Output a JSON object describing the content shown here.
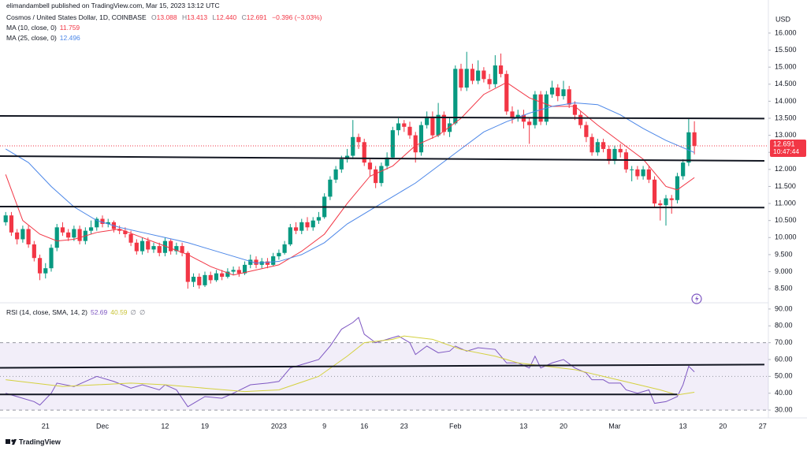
{
  "header": {
    "publisher": "elimandambell published on TradingView.com, Mar 15, 2023 13:12 UTC"
  },
  "footer": {
    "brand": "TradingView"
  },
  "chart_data": [
    {
      "type": "candlestick",
      "title": "Cosmos / United States Dollar, 1D, COINBASE",
      "readout": [
        {
          "label": "O",
          "value": "13.088"
        },
        {
          "label": "H",
          "value": "13.413"
        },
        {
          "label": "L",
          "value": "12.440"
        },
        {
          "label": "C",
          "value": "12.691"
        }
      ],
      "change": "−0.396 (−3.03%)",
      "currency": "USD",
      "countdown": "10:47:44",
      "up_color": "#089981",
      "down_color": "#f23645",
      "xlim": [
        -1,
        134
      ],
      "xticks": [
        {
          "value": 7,
          "label": "21"
        },
        {
          "value": 17,
          "label": "Dec"
        },
        {
          "value": 28,
          "label": "12"
        },
        {
          "value": 35,
          "label": "19"
        },
        {
          "value": 48,
          "label": "2023"
        },
        {
          "value": 56,
          "label": "9"
        },
        {
          "value": 63,
          "label": "16"
        },
        {
          "value": 70,
          "label": "23"
        },
        {
          "value": 79,
          "label": "Feb"
        },
        {
          "value": 91,
          "label": "13"
        },
        {
          "value": 98,
          "label": "20"
        },
        {
          "value": 107,
          "label": "Mar"
        },
        {
          "value": 119,
          "label": "13"
        },
        {
          "value": 126,
          "label": "20"
        },
        {
          "value": 133,
          "label": "27"
        }
      ],
      "ylim": [
        8.11,
        16.97
      ],
      "yticks": [
        {
          "value": 8.5,
          "label": "8.500"
        },
        {
          "value": 9,
          "label": "9.000"
        },
        {
          "value": 9.5,
          "label": "9.500"
        },
        {
          "value": 10,
          "label": "10.000"
        },
        {
          "value": 10.5,
          "label": "10.500"
        },
        {
          "value": 11,
          "label": "11.000"
        },
        {
          "value": 11.5,
          "label": "11.500"
        },
        {
          "value": 12,
          "label": "12.000"
        },
        {
          "value": 12.5,
          "label": "12.500"
        },
        {
          "value": 13,
          "label": "13.000"
        },
        {
          "value": 13.5,
          "label": "13.500"
        },
        {
          "value": 14,
          "label": "14.000"
        },
        {
          "value": 14.5,
          "label": "14.500"
        },
        {
          "value": 15,
          "label": "15.000"
        },
        {
          "value": 15.5,
          "label": "15.500"
        },
        {
          "value": 16,
          "label": "16.000"
        }
      ],
      "grid": false,
      "open": [
        10.45,
        10.65,
        10.15,
        9.95,
        10.25,
        9.8,
        9.4,
        8.95,
        9.1,
        9.7,
        10.3,
        10.15,
        10.0,
        10.25,
        9.9,
        10.2,
        10.3,
        10.55,
        10.4,
        10.45,
        10.25,
        10.2,
        10.1,
        9.85,
        9.6,
        9.9,
        9.65,
        9.75,
        9.55,
        9.9,
        9.6,
        9.75,
        9.55,
        8.7,
        8.85,
        8.6,
        8.9,
        8.75,
        8.95,
        8.85,
        9.0,
        9.05,
        8.95,
        9.2,
        9.35,
        9.2,
        9.3,
        9.2,
        9.45,
        9.55,
        9.8,
        10.3,
        10.2,
        10.45,
        10.3,
        10.5,
        10.6,
        11.2,
        11.7,
        12.0,
        12.3,
        12.4,
        12.95,
        12.8,
        12.2,
        12.0,
        11.6,
        12.1,
        12.35,
        13.15,
        13.35,
        13.25,
        13.0,
        12.5,
        13.3,
        13.55,
        13.0,
        13.6,
        13.1,
        13.35,
        14.95,
        14.4,
        14.95,
        14.6,
        14.9,
        14.65,
        14.5,
        15.05,
        14.8,
        13.7,
        13.5,
        13.6,
        13.4,
        13.3,
        14.2,
        13.4,
        14.2,
        14.4,
        14.15,
        14.35,
        13.9,
        13.6,
        13.3,
        12.95,
        12.5,
        12.8,
        12.6,
        12.25,
        12.6,
        12.5,
        12.0,
        12.0,
        11.8,
        12.0,
        11.7,
        11.0,
        10.95,
        11.15,
        11.1,
        11.8,
        12.2,
        13.088
      ],
      "high": [
        10.75,
        10.75,
        10.25,
        10.35,
        10.35,
        9.9,
        9.5,
        9.25,
        9.8,
        10.4,
        10.45,
        10.25,
        10.35,
        10.35,
        10.3,
        10.5,
        10.6,
        10.65,
        10.55,
        10.5,
        10.35,
        10.3,
        10.2,
        9.95,
        10.0,
        10.0,
        9.85,
        9.85,
        10.0,
        9.95,
        9.85,
        9.85,
        9.6,
        8.95,
        8.95,
        9.0,
        9.0,
        9.05,
        9.05,
        9.1,
        9.15,
        9.15,
        9.3,
        9.5,
        9.45,
        9.4,
        9.4,
        9.55,
        9.65,
        9.9,
        10.4,
        10.45,
        10.55,
        10.6,
        10.6,
        10.75,
        11.3,
        11.8,
        12.1,
        12.4,
        12.6,
        13.45,
        13.05,
        12.9,
        12.3,
        12.1,
        12.2,
        12.5,
        13.25,
        13.5,
        13.45,
        13.4,
        13.1,
        13.4,
        13.7,
        13.7,
        13.95,
        13.7,
        13.5,
        15.05,
        15.1,
        15.45,
        15.1,
        15.2,
        15.0,
        14.8,
        15.35,
        15.4,
        14.9,
        13.85,
        13.75,
        13.75,
        13.5,
        14.3,
        14.3,
        14.3,
        14.6,
        14.5,
        14.6,
        14.45,
        14.0,
        13.7,
        13.4,
        13.05,
        12.9,
        12.9,
        12.7,
        12.7,
        12.75,
        12.6,
        12.1,
        12.1,
        12.1,
        12.1,
        11.8,
        11.1,
        11.25,
        11.25,
        11.9,
        12.3,
        13.5,
        13.413
      ],
      "low": [
        10.35,
        10.05,
        9.8,
        9.85,
        9.7,
        9.3,
        8.75,
        8.8,
        9.0,
        9.6,
        10.05,
        9.9,
        9.9,
        9.8,
        9.8,
        10.1,
        10.2,
        10.3,
        10.3,
        10.15,
        10.1,
        10.0,
        9.75,
        9.5,
        9.5,
        9.55,
        9.55,
        9.45,
        9.45,
        9.5,
        9.5,
        9.45,
        8.5,
        8.55,
        8.5,
        8.55,
        8.65,
        8.7,
        8.75,
        8.8,
        8.9,
        8.85,
        8.9,
        9.1,
        9.1,
        9.1,
        9.1,
        9.15,
        9.35,
        9.5,
        9.75,
        10.1,
        10.1,
        10.2,
        10.2,
        10.4,
        10.55,
        11.1,
        11.6,
        11.9,
        12.2,
        12.3,
        12.6,
        12.1,
        11.8,
        11.45,
        11.5,
        12.0,
        12.3,
        13.0,
        13.1,
        12.9,
        12.2,
        12.4,
        13.2,
        12.9,
        12.95,
        13.0,
        12.95,
        13.3,
        14.3,
        14.3,
        14.5,
        14.5,
        14.55,
        14.35,
        14.4,
        14.7,
        13.6,
        13.35,
        13.4,
        13.2,
        12.75,
        13.2,
        13.3,
        13.3,
        14.1,
        14.0,
        14.05,
        13.8,
        13.45,
        13.2,
        12.8,
        12.4,
        12.4,
        12.5,
        12.15,
        12.15,
        12.35,
        11.9,
        11.65,
        11.7,
        11.7,
        11.6,
        10.9,
        10.5,
        10.35,
        10.7,
        11.0,
        11.7,
        12.1,
        12.44
      ],
      "close": [
        10.65,
        10.15,
        9.95,
        10.25,
        9.8,
        9.4,
        8.95,
        9.1,
        9.7,
        10.3,
        10.15,
        10.0,
        10.25,
        9.9,
        10.2,
        10.3,
        10.55,
        10.4,
        10.45,
        10.25,
        10.2,
        10.1,
        9.85,
        9.6,
        9.9,
        9.65,
        9.75,
        9.55,
        9.9,
        9.6,
        9.75,
        9.55,
        8.7,
        8.85,
        8.6,
        8.9,
        8.75,
        8.95,
        8.85,
        9.0,
        9.05,
        8.95,
        9.2,
        9.35,
        9.2,
        9.3,
        9.2,
        9.45,
        9.55,
        9.8,
        10.3,
        10.2,
        10.45,
        10.3,
        10.5,
        10.6,
        11.2,
        11.7,
        12.0,
        12.3,
        12.4,
        12.95,
        12.8,
        12.2,
        12.0,
        11.6,
        12.1,
        12.35,
        13.15,
        13.35,
        13.25,
        13.0,
        12.5,
        13.3,
        13.55,
        13.0,
        13.6,
        13.1,
        13.35,
        14.95,
        14.4,
        14.95,
        14.6,
        14.9,
        14.65,
        14.5,
        15.05,
        14.8,
        13.7,
        13.5,
        13.6,
        13.4,
        13.3,
        14.2,
        13.4,
        14.2,
        14.4,
        14.15,
        14.35,
        13.9,
        13.6,
        13.3,
        12.95,
        12.5,
        12.8,
        12.6,
        12.25,
        12.6,
        12.5,
        12.0,
        12.0,
        11.8,
        12.0,
        11.7,
        11.0,
        10.95,
        11.15,
        11.1,
        11.8,
        12.2,
        13.088,
        12.691
      ],
      "series": [
        {
          "name": "MA (10, close, 0)",
          "color": "#f23645",
          "x": [
            0,
            3,
            6,
            9,
            12,
            16,
            20,
            24,
            28,
            32,
            36,
            40,
            44,
            48,
            52,
            56,
            60,
            64,
            68,
            72,
            76,
            80,
            84,
            88,
            92,
            96,
            100,
            104,
            108,
            112,
            116,
            118,
            121
          ],
          "values": [
            11.85,
            10.5,
            10.1,
            9.9,
            9.95,
            10.15,
            10.25,
            10.0,
            9.75,
            9.5,
            9.15,
            8.9,
            9.05,
            9.2,
            9.6,
            10.1,
            11.0,
            11.8,
            12.1,
            12.7,
            13.0,
            13.5,
            14.2,
            14.55,
            14.1,
            13.85,
            13.85,
            13.3,
            12.8,
            12.3,
            11.5,
            11.4,
            11.759
          ]
        },
        {
          "name": "MA (25, close, 0)",
          "color": "#4c87e8",
          "x": [
            0,
            4,
            8,
            12,
            16,
            20,
            24,
            28,
            32,
            36,
            40,
            44,
            48,
            52,
            56,
            60,
            64,
            68,
            72,
            76,
            80,
            84,
            88,
            92,
            96,
            100,
            104,
            108,
            112,
            116,
            121
          ],
          "values": [
            12.6,
            12.2,
            11.5,
            10.9,
            10.5,
            10.3,
            10.15,
            10.0,
            9.85,
            9.65,
            9.45,
            9.25,
            9.3,
            9.5,
            9.85,
            10.4,
            10.8,
            11.2,
            11.6,
            12.1,
            12.6,
            13.1,
            13.4,
            13.65,
            13.85,
            13.95,
            13.9,
            13.6,
            13.2,
            12.85,
            12.496
          ]
        }
      ],
      "trendlines": [
        {
          "x": [
            -1,
            133.3
          ],
          "y": [
            13.57,
            13.49
          ]
        },
        {
          "x": [
            -1,
            133.3
          ],
          "y": [
            12.39,
            12.25
          ]
        },
        {
          "x": [
            -1,
            133.3
          ],
          "y": [
            10.91,
            10.88
          ]
        }
      ]
    },
    {
      "type": "line",
      "ylim": [
        26.3,
        93.7
      ],
      "yticks": [
        {
          "value": 30,
          "label": "30.00"
        },
        {
          "value": 40,
          "label": "40.00"
        },
        {
          "value": 50,
          "label": "50.00"
        },
        {
          "value": 60,
          "label": "60.00"
        },
        {
          "value": 70,
          "label": "70.00"
        },
        {
          "value": 80,
          "label": "80.00"
        },
        {
          "value": 90,
          "label": "90.00"
        }
      ],
      "bands": {
        "upper": 70,
        "middle": 50,
        "lower": 30
      },
      "placeholders": [
        "∅",
        "∅"
      ],
      "series": [
        {
          "name": "RSI (14, close, SMA, 14, 2)",
          "color": "#7e57c2",
          "x": [
            0,
            2,
            5,
            6,
            8,
            9,
            12,
            14,
            16,
            19,
            22,
            24,
            27,
            28,
            30,
            32,
            35,
            38,
            40,
            43,
            46,
            48,
            50,
            52,
            55,
            57,
            59,
            61,
            62,
            63,
            65,
            67,
            69,
            71,
            72,
            74,
            76,
            78,
            79,
            81,
            83,
            86,
            88,
            90,
            92,
            93,
            94,
            96,
            98,
            100,
            102,
            103,
            105,
            106,
            108,
            109,
            111,
            113,
            114,
            116,
            118,
            119,
            120,
            121
          ],
          "values": [
            40,
            38,
            35,
            33,
            40,
            46,
            44,
            47,
            50,
            47,
            43,
            45,
            42,
            45,
            42,
            32,
            38,
            37,
            40,
            45,
            46,
            47,
            55,
            57,
            60,
            68,
            78,
            82,
            85,
            75,
            70,
            72,
            74,
            70,
            63,
            68,
            64,
            65,
            68,
            65,
            67,
            66,
            58,
            58,
            55,
            62,
            55,
            58,
            60,
            55,
            52,
            48,
            48,
            46,
            46,
            42,
            40,
            42,
            34,
            35,
            38,
            45,
            56,
            52.69
          ]
        },
        {
          "color": "#d4d13f",
          "x": [
            0,
            5,
            10,
            16,
            22,
            28,
            35,
            42,
            48,
            55,
            60,
            63,
            68,
            70,
            75,
            80,
            86,
            90,
            95,
            100,
            105,
            110,
            115,
            118,
            121
          ],
          "values": [
            48,
            46,
            44,
            45,
            46,
            45,
            43,
            41,
            42,
            50,
            62,
            70,
            72,
            74,
            72,
            66,
            62,
            58,
            56,
            54,
            50,
            46,
            42,
            39,
            40.59
          ]
        }
      ],
      "trendlines": [
        {
          "x": [
            -1,
            133.3
          ],
          "y": [
            55.1,
            57
          ]
        },
        {
          "x": [
            -1,
            118
          ],
          "y": [
            39.3,
            39.3
          ]
        }
      ]
    }
  ]
}
